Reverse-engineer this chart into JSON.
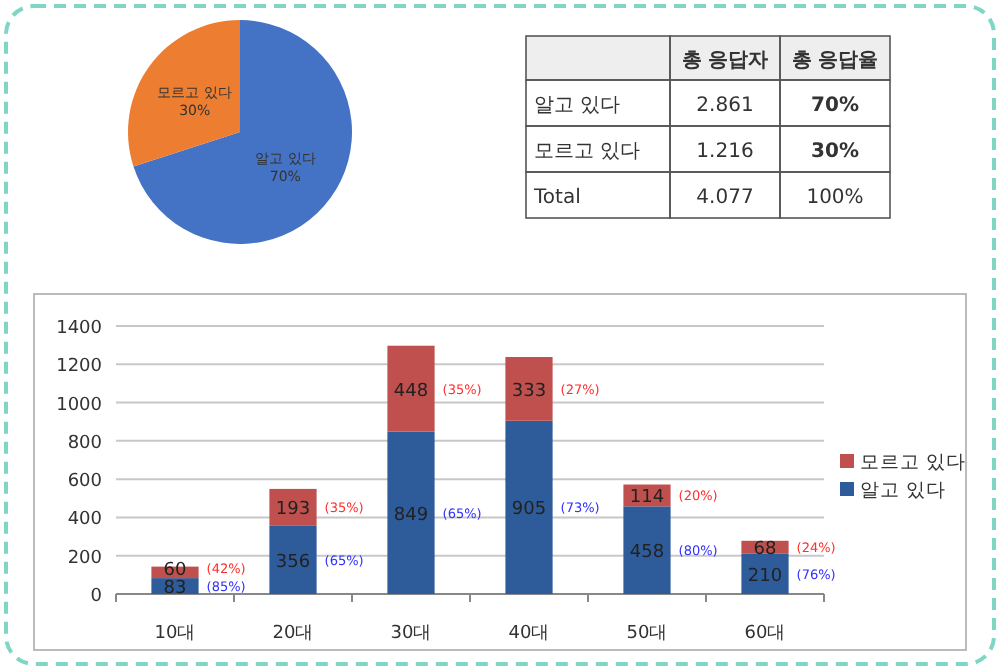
{
  "chart_data": [
    {
      "type": "pie",
      "categories": [
        "알고 있다",
        "모르고 있다"
      ],
      "values": [
        70,
        30
      ],
      "colors": [
        "#4472c4",
        "#ed7d31"
      ],
      "value_labels": [
        "70%",
        "30%"
      ]
    },
    {
      "type": "other",
      "annotations": [
        "총 응답자",
        "총 응답율",
        "알고 있다",
        "2.861",
        "70%",
        "모르고 있다",
        "1.216",
        "30%",
        "Total",
        "4.077",
        "100%"
      ]
    },
    {
      "type": "bar",
      "stacked": true,
      "categories": [
        "10대",
        "20대",
        "30대",
        "40대",
        "50대",
        "60대"
      ],
      "series": [
        {
          "name": "알고 있다",
          "color": "#2e5c9a",
          "values": [
            83,
            356,
            849,
            905,
            458,
            210
          ]
        },
        {
          "name": "모르고 있다",
          "color": "#c0504d",
          "values": [
            60,
            193,
            448,
            333,
            114,
            68
          ]
        }
      ],
      "ylim": [
        0,
        1400
      ],
      "yticks": [
        0,
        200,
        400,
        600,
        800,
        1000,
        1200,
        1400
      ],
      "grid": "y",
      "legend": "right",
      "data_labels": true,
      "annotations": [
        "(42%)",
        "(85%)",
        "(35%)",
        "(65%)",
        "(35%)",
        "(65%)",
        "(27%)",
        "(73%)",
        "(20%)",
        "(80%)",
        "(24%)",
        "(76%)"
      ]
    }
  ]
}
